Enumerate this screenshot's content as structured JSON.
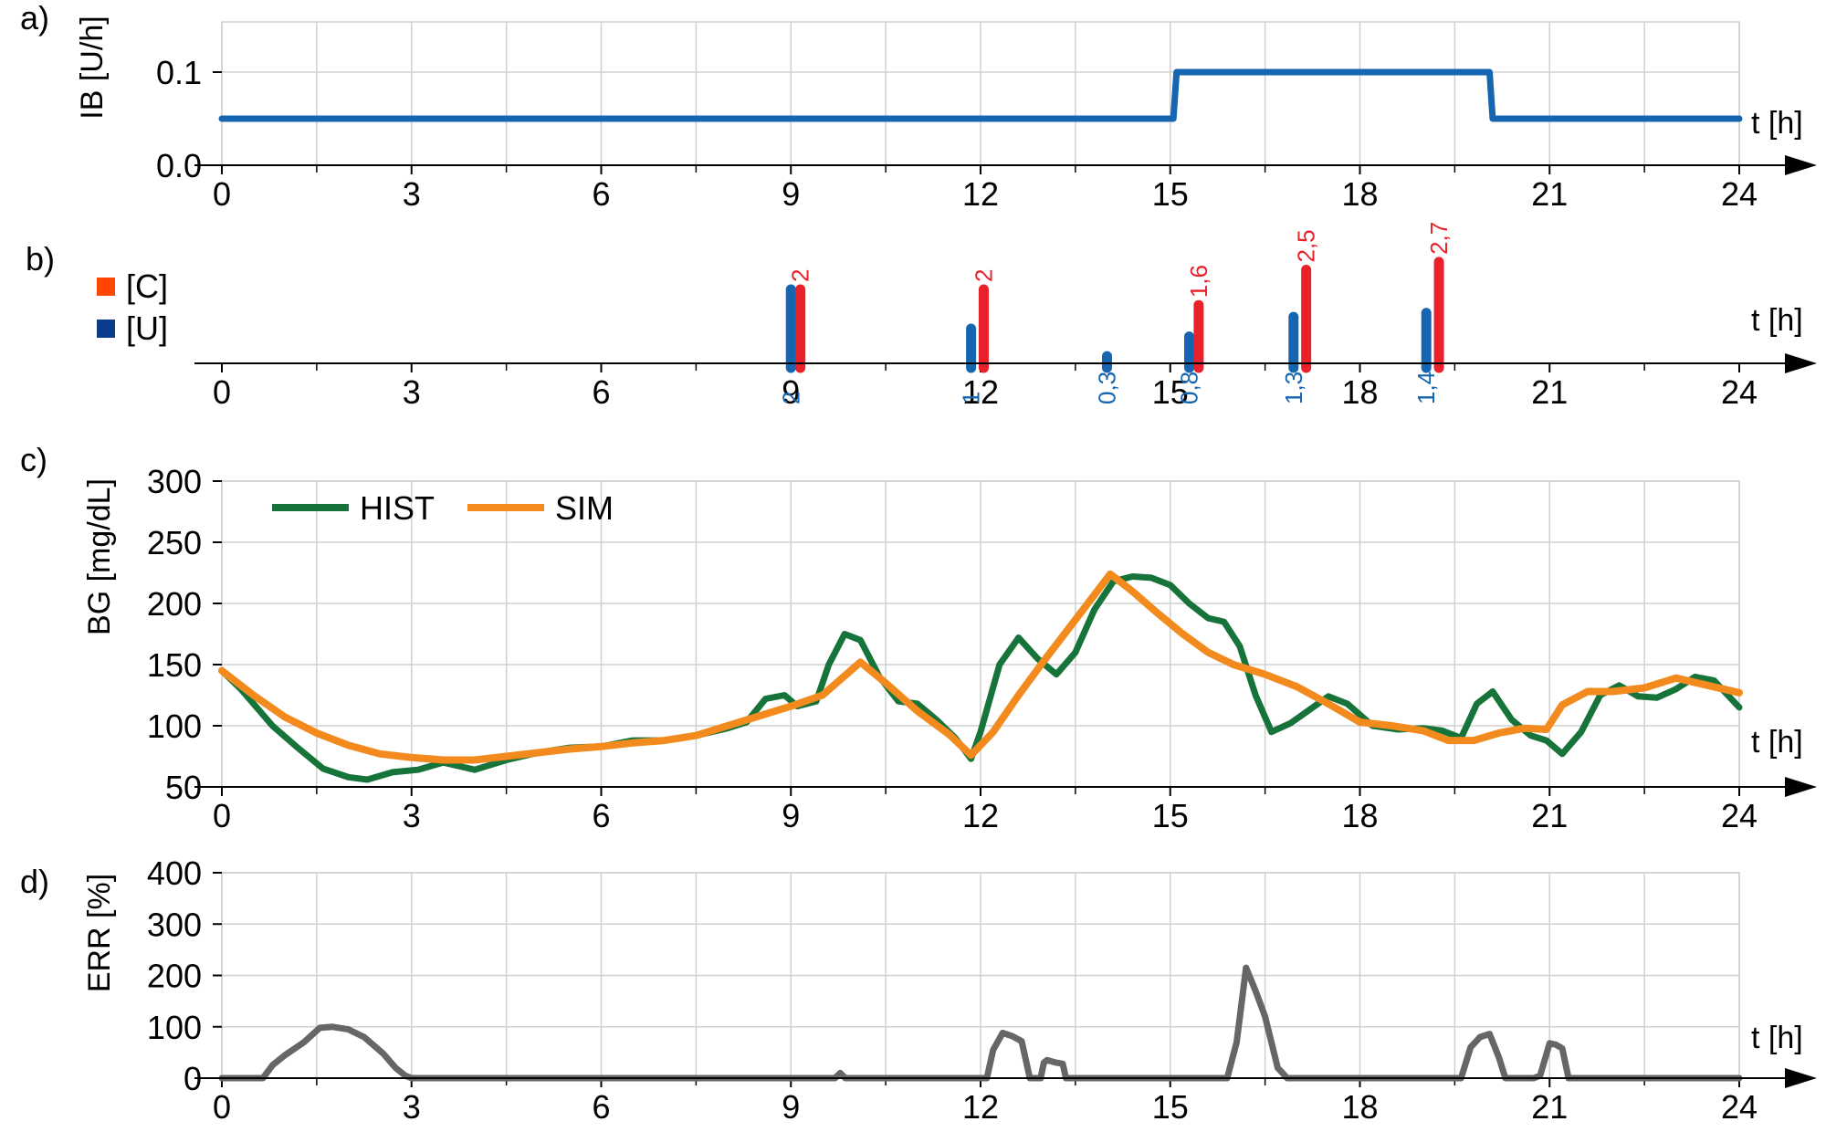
{
  "colors": {
    "ib_line": "#1565b0",
    "carb": "#e8212b",
    "carb_legend": "#ff4500",
    "insulin": "#1565b0",
    "insulin_legend": "#0b3c8c",
    "hist": "#16733a",
    "sim": "#f28a1e",
    "err": "#666666",
    "grid": "#d0d0d0",
    "axis": "#000000"
  },
  "chart_data": [
    {
      "panel": "a)",
      "type": "line",
      "ylabel": "IB [U/h]",
      "xlabel": "t [h]",
      "xlim": [
        0,
        24
      ],
      "ylim": [
        0,
        0.1
      ],
      "xticks": [
        "0",
        "3",
        "6",
        "9",
        "12",
        "15",
        "18",
        "21",
        "24"
      ],
      "yticks": [
        "0.0",
        "0.1"
      ],
      "series": [
        {
          "x": [
            0,
            15.05,
            15.1,
            20.05,
            20.1,
            24
          ],
          "y": [
            0.05,
            0.05,
            0.1,
            0.1,
            0.05,
            0.05
          ]
        }
      ]
    },
    {
      "panel": "b)",
      "type": "bar",
      "xlabel": "t [h]",
      "xlim": [
        0,
        24
      ],
      "xticks": [
        "0",
        "3",
        "6",
        "9",
        "12",
        "15",
        "18",
        "21",
        "24"
      ],
      "legend": [
        {
          "key": "carbs",
          "label": "[C]"
        },
        {
          "key": "insulin",
          "label": "[U]"
        }
      ],
      "carbs": [
        {
          "x": 9.15,
          "value": 2,
          "label": "2"
        },
        {
          "x": 12.05,
          "value": 2,
          "label": "2"
        },
        {
          "x": 15.45,
          "value": 1.6,
          "label": "1,6"
        },
        {
          "x": 17.15,
          "value": 2.5,
          "label": "2,5"
        },
        {
          "x": 19.25,
          "value": 2.7,
          "label": "2,7"
        }
      ],
      "insulin": [
        {
          "x": 9.0,
          "value": 2,
          "label": "2"
        },
        {
          "x": 11.85,
          "value": 1,
          "label": "1"
        },
        {
          "x": 14.0,
          "value": 0.3,
          "label": "0,3"
        },
        {
          "x": 15.3,
          "value": 0.8,
          "label": "0,8"
        },
        {
          "x": 16.95,
          "value": 1.3,
          "label": "1,3"
        },
        {
          "x": 19.05,
          "value": 1.4,
          "label": "1,4"
        }
      ]
    },
    {
      "panel": "c)",
      "type": "line",
      "ylabel": "BG [mg/dL]",
      "xlabel": "t [h]",
      "xlim": [
        0,
        24
      ],
      "ylim": [
        50,
        300
      ],
      "xticks": [
        "0",
        "3",
        "6",
        "9",
        "12",
        "15",
        "18",
        "21",
        "24"
      ],
      "yticks": [
        "50",
        "100",
        "150",
        "200",
        "250",
        "300"
      ],
      "legend_position": "top-left",
      "series": [
        {
          "key": "hist",
          "name": "HIST",
          "x": [
            0,
            0.3,
            0.8,
            1.2,
            1.6,
            2.0,
            2.3,
            2.7,
            3.1,
            3.5,
            4.0,
            4.5,
            5.0,
            5.5,
            6.0,
            6.5,
            7.0,
            7.5,
            8.0,
            8.3,
            8.6,
            8.9,
            9.1,
            9.4,
            9.6,
            9.85,
            10.1,
            10.4,
            10.7,
            11.0,
            11.3,
            11.6,
            11.85,
            12.0,
            12.3,
            12.6,
            12.9,
            13.2,
            13.5,
            13.8,
            14.1,
            14.4,
            14.7,
            15.0,
            15.3,
            15.6,
            15.85,
            16.1,
            16.35,
            16.6,
            16.9,
            17.2,
            17.5,
            17.8,
            18.2,
            18.6,
            19.0,
            19.3,
            19.6,
            19.85,
            20.1,
            20.4,
            20.7,
            20.95,
            21.2,
            21.5,
            21.8,
            22.1,
            22.4,
            22.7,
            23.0,
            23.3,
            23.6,
            24.0
          ],
          "y": [
            145,
            130,
            100,
            82,
            65,
            58,
            56,
            62,
            64,
            70,
            64,
            72,
            78,
            82,
            83,
            88,
            88,
            92,
            98,
            103,
            122,
            125,
            116,
            120,
            150,
            175,
            170,
            140,
            120,
            118,
            105,
            90,
            73,
            95,
            150,
            172,
            155,
            142,
            160,
            195,
            218,
            222,
            221,
            215,
            200,
            188,
            185,
            165,
            125,
            95,
            102,
            113,
            124,
            118,
            100,
            97,
            98,
            96,
            90,
            118,
            128,
            105,
            92,
            88,
            77,
            95,
            125,
            133,
            124,
            123,
            130,
            140,
            137,
            115
          ]
        },
        {
          "key": "sim",
          "name": "SIM",
          "x": [
            0,
            0.5,
            1.0,
            1.5,
            2.0,
            2.5,
            3.0,
            3.5,
            4.0,
            4.5,
            5.0,
            5.5,
            6.0,
            6.5,
            7.0,
            7.5,
            8.0,
            8.5,
            9.0,
            9.5,
            10.1,
            10.5,
            11.0,
            11.5,
            11.85,
            12.2,
            12.6,
            13.0,
            13.4,
            13.8,
            14.05,
            14.4,
            14.8,
            15.2,
            15.6,
            16.0,
            16.5,
            17.0,
            17.5,
            18.0,
            18.5,
            19.0,
            19.4,
            19.8,
            20.2,
            20.6,
            20.95,
            21.2,
            21.6,
            22.0,
            22.5,
            23.0,
            23.5,
            24.0
          ],
          "y": [
            145,
            125,
            107,
            94,
            84,
            77,
            74,
            72,
            72,
            75,
            78,
            81,
            83,
            86,
            88,
            92,
            100,
            108,
            116,
            125,
            152,
            135,
            112,
            93,
            76,
            95,
            125,
            153,
            180,
            207,
            224,
            210,
            192,
            175,
            160,
            150,
            142,
            132,
            118,
            103,
            100,
            96,
            88,
            88,
            94,
            98,
            97,
            117,
            128,
            128,
            131,
            139,
            133,
            127
          ]
        }
      ]
    },
    {
      "panel": "d)",
      "type": "line",
      "ylabel": "ERR [%]",
      "xlabel": "t [h]",
      "xlim": [
        0,
        24
      ],
      "ylim": [
        0,
        400
      ],
      "xticks": [
        "0",
        "3",
        "6",
        "9",
        "12",
        "15",
        "18",
        "21",
        "24"
      ],
      "yticks": [
        "0",
        "100",
        "200",
        "300",
        "400"
      ],
      "series": [
        {
          "key": "err",
          "x": [
            0,
            0.65,
            0.8,
            1.0,
            1.3,
            1.55,
            1.75,
            2.0,
            2.25,
            2.55,
            2.75,
            2.9,
            3.0,
            9.7,
            9.78,
            9.86,
            12.1,
            12.2,
            12.35,
            12.5,
            12.65,
            12.78,
            12.95,
            13.0,
            13.05,
            13.2,
            13.3,
            13.35,
            13.45,
            15.9,
            16.05,
            16.2,
            16.35,
            16.5,
            16.7,
            16.85,
            17.0,
            19.6,
            19.75,
            19.9,
            20.05,
            20.2,
            20.3,
            20.45,
            20.75,
            20.85,
            21.0,
            21.1,
            21.2,
            21.3,
            24.0
          ],
          "y": [
            0,
            0,
            25,
            45,
            70,
            98,
            100,
            95,
            80,
            48,
            20,
            5,
            0,
            0,
            10,
            0,
            0,
            55,
            88,
            82,
            72,
            0,
            0,
            30,
            35,
            30,
            28,
            0,
            0,
            0,
            70,
            215,
            170,
            120,
            20,
            0,
            0,
            0,
            60,
            80,
            86,
            40,
            0,
            0,
            0,
            5,
            68,
            65,
            58,
            0,
            0
          ]
        }
      ]
    }
  ],
  "series_labels": {
    "hist": "HIST",
    "sim": "SIM"
  }
}
